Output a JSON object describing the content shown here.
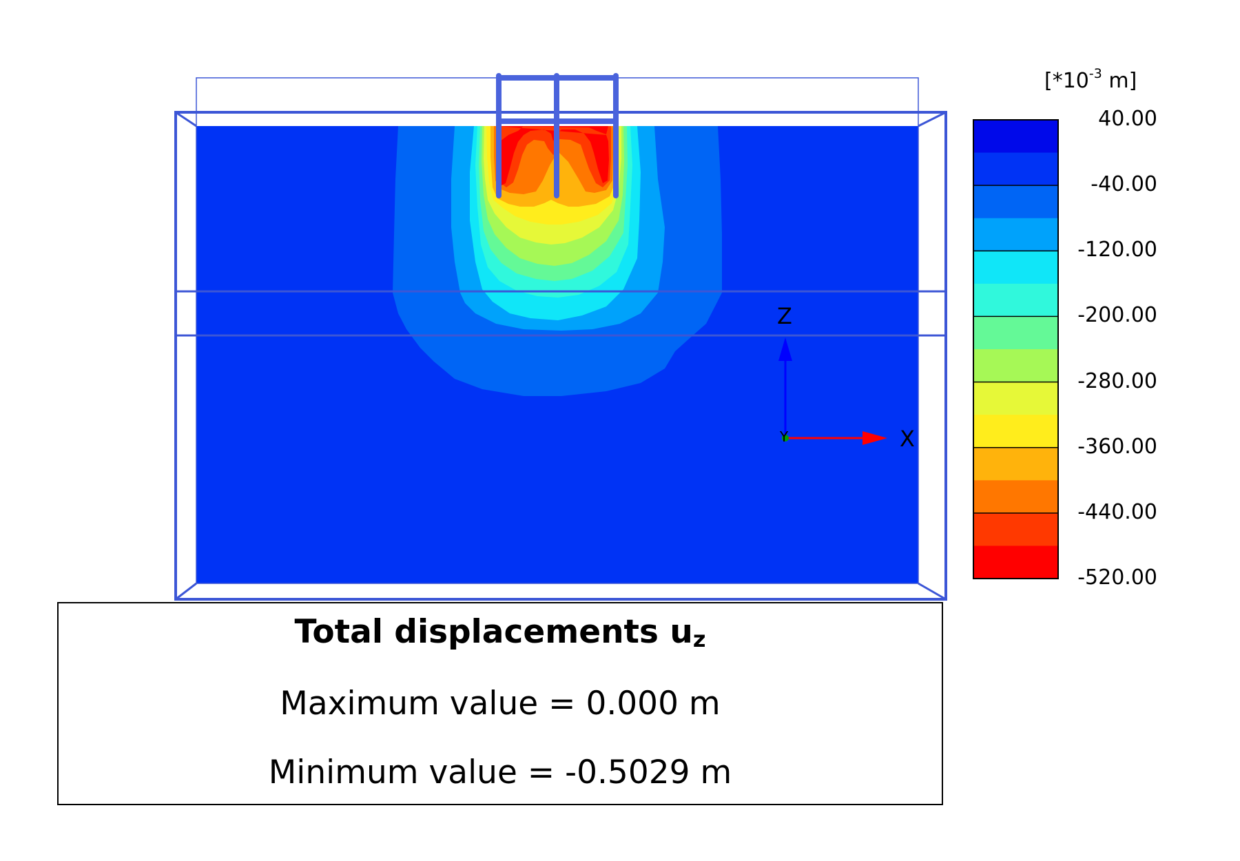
{
  "legend": {
    "unit_prefix": "[*10",
    "unit_exponent": "-3",
    "unit_suffix": " m]",
    "labels": [
      "40.00",
      "-40.00",
      "-120.00",
      "-200.00",
      "-280.00",
      "-360.00",
      "-440.00",
      "-520.00"
    ],
    "colors": [
      "#0009ea",
      "#0033f5",
      "#0065f5",
      "#00a2fb",
      "#10e6f8",
      "#30f8dc",
      "#64f997",
      "#a6f856",
      "#e6f838",
      "#ffed1c",
      "#ffb30c",
      "#ff7700",
      "#ff3900",
      "#ff0000"
    ]
  },
  "axes": {
    "z_label": "Z",
    "x_label": "X",
    "y_label": "Y"
  },
  "info": {
    "title": "Total displacements u",
    "title_subscript": "z",
    "max_text": "Maximum value = 0.000 m",
    "min_text": "Minimum value = -0.5029 m"
  }
}
